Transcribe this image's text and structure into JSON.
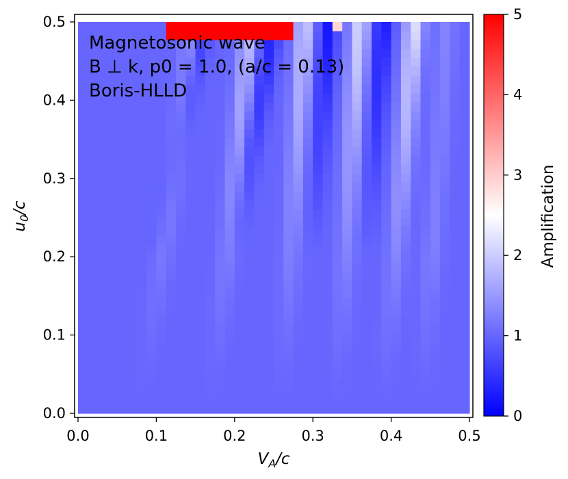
{
  "chart_data": {
    "type": "heatmap",
    "title": "",
    "annotations": [
      "Magnetosonic wave",
      "B ⊥ k, p0 = 1.0, (a/c = 0.13)",
      "Boris-HLLD"
    ],
    "xlabel": {
      "main": "V",
      "sub": "A",
      "rest": "/c"
    },
    "ylabel": {
      "main": "u",
      "sub": "0",
      "rest": "/c"
    },
    "xlim": [
      0.0,
      0.5
    ],
    "ylim": [
      0.0,
      0.5
    ],
    "xticks": [
      {
        "value": 0.0,
        "label": "0.0"
      },
      {
        "value": 0.1,
        "label": "0.1"
      },
      {
        "value": 0.2,
        "label": "0.2"
      },
      {
        "value": 0.3,
        "label": "0.3"
      },
      {
        "value": 0.4,
        "label": "0.4"
      },
      {
        "value": 0.5,
        "label": "0.5"
      }
    ],
    "yticks": [
      {
        "value": 0.0,
        "label": "0.0"
      },
      {
        "value": 0.1,
        "label": "0.1"
      },
      {
        "value": 0.2,
        "label": "0.2"
      },
      {
        "value": 0.3,
        "label": "0.3"
      },
      {
        "value": 0.4,
        "label": "0.4"
      },
      {
        "value": 0.5,
        "label": "0.5"
      }
    ],
    "grid": false,
    "colormap": "bwr",
    "colorbar": {
      "label": "Amplification",
      "range": [
        0,
        5
      ],
      "ticks": [
        {
          "value": 0,
          "label": "0"
        },
        {
          "value": 1,
          "label": "1"
        },
        {
          "value": 2,
          "label": "2"
        },
        {
          "value": 3,
          "label": "3"
        },
        {
          "value": 4,
          "label": "4"
        },
        {
          "value": 5,
          "label": "5"
        }
      ]
    },
    "grid_resolution": {
      "nx": 40,
      "ny": 44
    },
    "background_level": 1.0,
    "features": [
      {
        "kind": "ridge",
        "x_start": 0.08,
        "y_start": 0.0,
        "x_end": 0.15,
        "y_end": 0.5,
        "peak": 1.7
      },
      {
        "kind": "ridge",
        "x_start": 0.17,
        "y_start": 0.0,
        "x_end": 0.22,
        "y_end": 0.5,
        "peak": 1.9
      },
      {
        "kind": "ridge",
        "x_start": 0.26,
        "y_start": 0.0,
        "x_end": 0.29,
        "y_end": 0.5,
        "peak": 2.0
      },
      {
        "kind": "ridge",
        "x_start": 0.33,
        "y_start": 0.0,
        "x_end": 0.36,
        "y_end": 0.5,
        "peak": 2.1
      },
      {
        "kind": "ridge",
        "x_start": 0.39,
        "y_start": 0.0,
        "x_end": 0.43,
        "y_end": 0.5,
        "peak": 2.2
      },
      {
        "kind": "ridge",
        "x_start": 0.44,
        "y_start": 0.0,
        "x_end": 0.47,
        "y_end": 0.5,
        "peak": 2.0
      },
      {
        "kind": "trough",
        "x_start": 0.1,
        "y_start": 0.2,
        "x_end": 0.16,
        "y_end": 0.5,
        "low": 0.3
      },
      {
        "kind": "trough",
        "x_start": 0.2,
        "y_start": 0.2,
        "x_end": 0.25,
        "y_end": 0.5,
        "low": 0.3
      },
      {
        "kind": "trough",
        "x_start": 0.3,
        "y_start": 0.2,
        "x_end": 0.32,
        "y_end": 0.5,
        "low": 0.2
      },
      {
        "kind": "trough",
        "x_start": 0.37,
        "y_start": 0.2,
        "x_end": 0.39,
        "y_end": 0.5,
        "low": 0.2
      },
      {
        "kind": "trough",
        "x_start": 0.45,
        "y_start": 0.2,
        "x_end": 0.47,
        "y_end": 0.5,
        "low": 0.3
      },
      {
        "kind": "hotspot",
        "x_min": 0.115,
        "x_max": 0.27,
        "y_min": 0.475,
        "y_max": 0.5,
        "value": 5.0
      },
      {
        "kind": "hotspot",
        "x_min": 0.32,
        "x_max": 0.34,
        "y_min": 0.49,
        "y_max": 0.5,
        "value": 2.9
      }
    ]
  }
}
